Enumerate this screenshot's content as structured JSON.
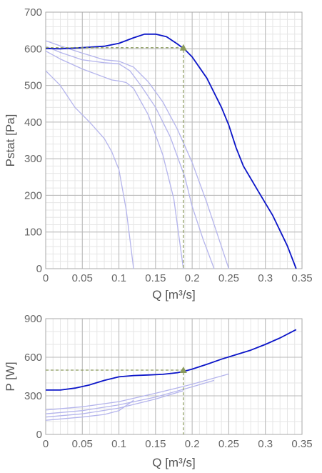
{
  "chart_data": [
    {
      "type": "line",
      "xlabel": "Q [m³/s]",
      "ylabel": "Pstat [Pa]",
      "xlim": [
        0,
        0.35
      ],
      "ylim": [
        0,
        700
      ],
      "xticks": [
        "0",
        "0.05",
        "0.1",
        "0.15",
        "0.2",
        "0.25",
        "0.3",
        "0.35"
      ],
      "yticks": [
        "0",
        "100",
        "200",
        "300",
        "400",
        "500",
        "600",
        "700"
      ],
      "grid": true,
      "colors": {
        "main": "#0a14c8",
        "faded": "#b4b4ec",
        "operating": "#8a9a5b",
        "grid_major": "#b8b8b8",
        "grid_minor": "#e6e6e6"
      },
      "series": [
        {
          "x": [
            0,
            0.02,
            0.05,
            0.08,
            0.1,
            0.12,
            0.135,
            0.15,
            0.165,
            0.18,
            0.19,
            0.2,
            0.22,
            0.24,
            0.25,
            0.26,
            0.27,
            0.29,
            0.31,
            0.33,
            0.342
          ],
          "y": [
            601,
            600,
            603,
            607,
            615,
            630,
            640,
            640,
            633,
            613,
            598,
            578,
            520,
            440,
            392,
            330,
            280,
            212,
            145,
            62,
            0
          ]
        },
        {
          "x": [
            0,
            0.02,
            0.05,
            0.08,
            0.1,
            0.12,
            0.14,
            0.16,
            0.18,
            0.2,
            0.22,
            0.24,
            0.25
          ],
          "y": [
            622,
            608,
            588,
            570,
            566,
            550,
            510,
            455,
            380,
            290,
            180,
            60,
            0
          ]
        },
        {
          "x": [
            0,
            0.02,
            0.05,
            0.08,
            0.1,
            0.115,
            0.13,
            0.15,
            0.17,
            0.19,
            0.2,
            0.215,
            0.23
          ],
          "y": [
            607,
            590,
            570,
            562,
            559,
            540,
            500,
            440,
            360,
            250,
            170,
            80,
            0
          ]
        },
        {
          "x": [
            0,
            0.02,
            0.05,
            0.07,
            0.09,
            0.1,
            0.11,
            0.12,
            0.14,
            0.16,
            0.175,
            0.188
          ],
          "y": [
            594,
            572,
            545,
            530,
            515,
            512,
            508,
            492,
            420,
            310,
            190,
            0
          ]
        },
        {
          "x": [
            0,
            0.02,
            0.04,
            0.06,
            0.08,
            0.09,
            0.1,
            0.11,
            0.115,
            0.12
          ],
          "y": [
            540,
            500,
            440,
            400,
            355,
            320,
            270,
            160,
            80,
            0
          ]
        }
      ],
      "operating_point": {
        "x": 0.188,
        "y": 603
      }
    },
    {
      "type": "line",
      "xlabel": "Q [m³/s]",
      "ylabel": "P [W]",
      "xlim": [
        0,
        0.35
      ],
      "ylim": [
        0,
        900
      ],
      "xticks": [
        "0",
        "0.05",
        "0.1",
        "0.15",
        "0.2",
        "0.25",
        "0.3",
        "0.35"
      ],
      "yticks": [
        "0",
        "300",
        "600",
        "900"
      ],
      "grid": true,
      "series": [
        {
          "x": [
            0,
            0.02,
            0.04,
            0.06,
            0.08,
            0.1,
            0.12,
            0.14,
            0.16,
            0.18,
            0.19,
            0.2,
            0.22,
            0.24,
            0.26,
            0.28,
            0.3,
            0.32,
            0.342
          ],
          "y": [
            345,
            345,
            360,
            385,
            420,
            448,
            458,
            462,
            467,
            480,
            492,
            508,
            545,
            585,
            620,
            655,
            700,
            750,
            815
          ]
        },
        {
          "x": [
            0,
            0.05,
            0.1,
            0.15,
            0.2,
            0.25
          ],
          "y": [
            190,
            215,
            255,
            320,
            390,
            470
          ]
        },
        {
          "x": [
            0,
            0.05,
            0.1,
            0.15,
            0.2,
            0.23
          ],
          "y": [
            160,
            185,
            230,
            290,
            370,
            420
          ]
        },
        {
          "x": [
            0,
            0.05,
            0.1,
            0.15,
            0.188
          ],
          "y": [
            135,
            160,
            205,
            275,
            340
          ]
        },
        {
          "x": [
            0,
            0.05,
            0.08,
            0.1,
            0.12
          ],
          "y": [
            110,
            135,
            155,
            185,
            265
          ]
        }
      ],
      "operating_point": {
        "x": 0.188,
        "y": 500
      }
    }
  ]
}
